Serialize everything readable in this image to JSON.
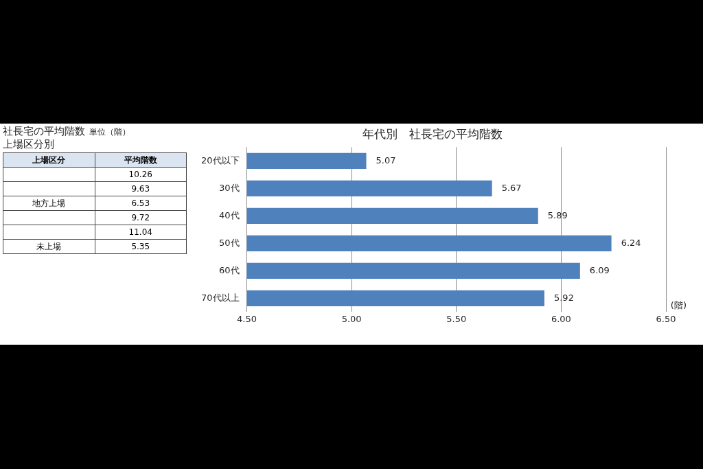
{
  "chart_data": [
    {
      "type": "other",
      "title": "社長宅の平均階数",
      "subtitle": "上場区分別",
      "annotations": [
        "単位（階）"
      ],
      "xlabel": "上場区分",
      "ylabel": "平均階数",
      "categories": [
        null,
        null,
        "地方上場",
        null,
        null,
        "未上場"
      ],
      "values": [
        10.26,
        9.63,
        6.53,
        9.72,
        11.04,
        5.35
      ],
      "data_labels": true
    },
    {
      "type": "bar",
      "orientation": "horizontal",
      "title": "年代別　社長宅の平均階数",
      "xlabel": "(階)",
      "categories": [
        "20代以下",
        "30代",
        "40代",
        "50代",
        "60代",
        "70代以上"
      ],
      "values": [
        5.07,
        5.67,
        5.89,
        6.24,
        6.09,
        5.92
      ],
      "color": "#4f81bd",
      "xlim": [
        4.5,
        6.5
      ],
      "xticks": [
        {
          "value": 4.5,
          "label": "4.50"
        },
        {
          "value": 5,
          "label": "5.00"
        },
        {
          "value": 5.5,
          "label": "5.50"
        },
        {
          "value": 6,
          "label": "6.00"
        },
        {
          "value": 6.5,
          "label": "6.50"
        }
      ],
      "grid": "x",
      "data_labels": true
    }
  ]
}
